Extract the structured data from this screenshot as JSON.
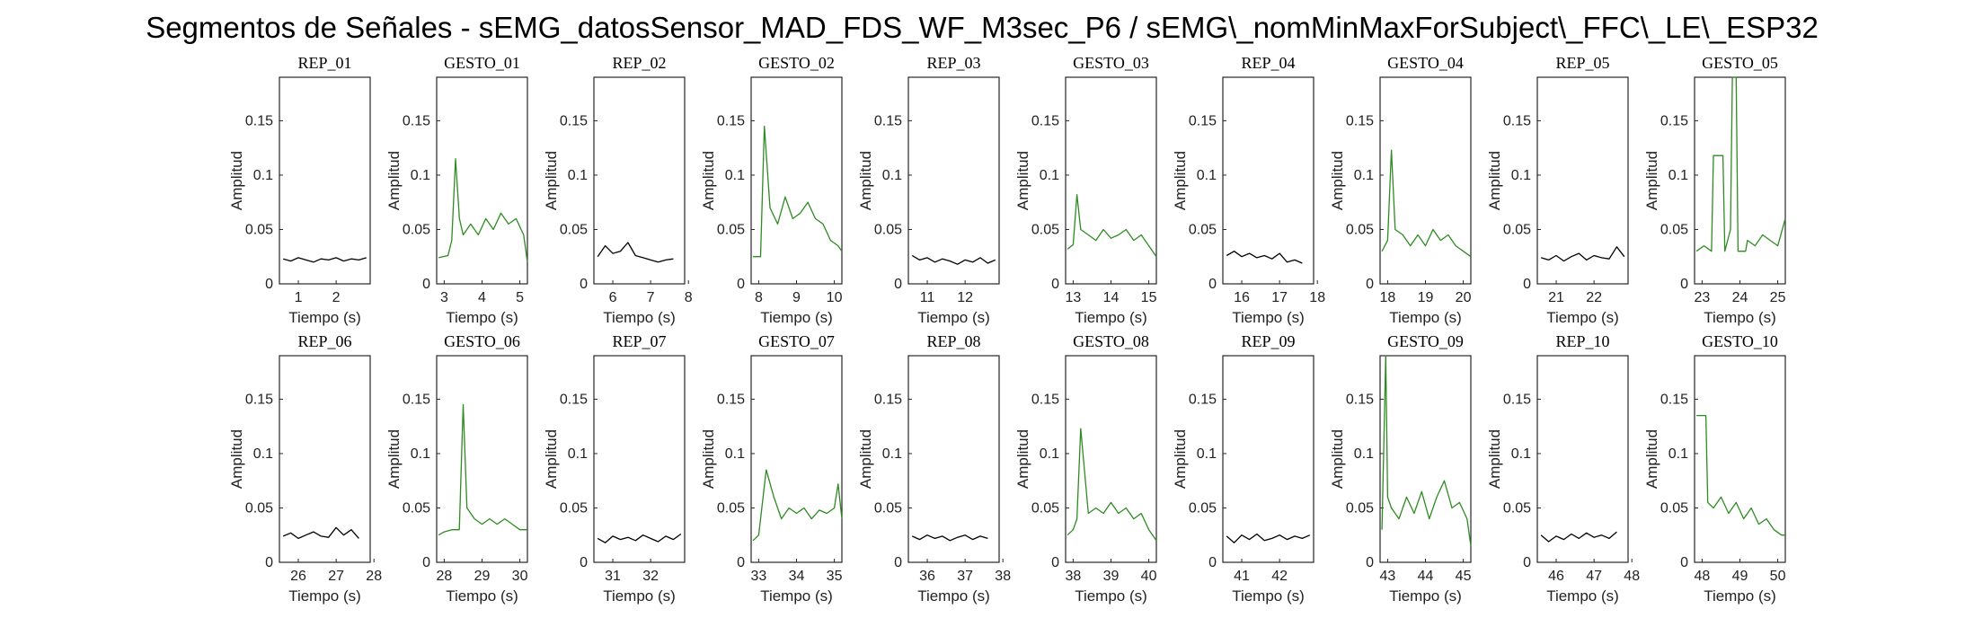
{
  "title": "Segmentos de Señales - sEMG_datosSensor_MAD_FDS_WF_M3sec_P6 / sEMG\\_nomMinMaxForSubject\\_FFC\\_LE\\_ESP32",
  "colors": {
    "rep": "#000000",
    "gesto": "#2e8b22",
    "axis": "#262626"
  },
  "chart_data": [
    {
      "type": "line",
      "subtitle": "REP_01",
      "xlabel": "Tiempo (s)",
      "ylabel": "Amplitud",
      "xlim": [
        0.5,
        2.9
      ],
      "ylim": [
        0,
        0.19
      ],
      "xticks": [
        1,
        2
      ],
      "yticks": [
        0,
        0.05,
        0.1,
        0.15
      ],
      "series": [
        {
          "kind": "rep",
          "x": [
            0.6,
            0.8,
            1.0,
            1.2,
            1.4,
            1.6,
            1.8,
            2.0,
            2.2,
            2.4,
            2.6,
            2.8
          ],
          "y": [
            0.023,
            0.021,
            0.024,
            0.022,
            0.02,
            0.023,
            0.022,
            0.024,
            0.021,
            0.023,
            0.022,
            0.024
          ]
        }
      ]
    },
    {
      "type": "line",
      "subtitle": "GESTO_01",
      "xlabel": "Tiempo (s)",
      "ylabel": "Amplitud",
      "xlim": [
        2.8,
        5.2
      ],
      "ylim": [
        0,
        0.19
      ],
      "xticks": [
        3,
        4,
        5
      ],
      "yticks": [
        0,
        0.05,
        0.1,
        0.15
      ],
      "series": [
        {
          "kind": "gesto",
          "x": [
            2.85,
            3.1,
            3.2,
            3.3,
            3.4,
            3.5,
            3.7,
            3.9,
            4.1,
            4.3,
            4.5,
            4.7,
            4.9,
            5.1,
            5.2
          ],
          "y": [
            0.024,
            0.026,
            0.04,
            0.115,
            0.06,
            0.045,
            0.055,
            0.045,
            0.06,
            0.05,
            0.065,
            0.055,
            0.06,
            0.045,
            0.02
          ]
        }
      ]
    },
    {
      "type": "line",
      "subtitle": "REP_02",
      "xlabel": "Tiempo (s)",
      "ylabel": "Amplitud",
      "xlim": [
        5.5,
        7.9
      ],
      "ylim": [
        0,
        0.19
      ],
      "xticks": [
        6,
        7,
        8
      ],
      "yticks": [
        0,
        0.05,
        0.1,
        0.15
      ],
      "series": [
        {
          "kind": "rep",
          "x": [
            5.6,
            5.8,
            6.0,
            6.2,
            6.4,
            6.6,
            6.8,
            7.0,
            7.2,
            7.4,
            7.6
          ],
          "y": [
            0.025,
            0.035,
            0.028,
            0.03,
            0.038,
            0.026,
            0.024,
            0.022,
            0.02,
            0.022,
            0.023
          ]
        }
      ]
    },
    {
      "type": "line",
      "subtitle": "GESTO_02",
      "xlabel": "Tiempo (s)",
      "ylabel": "Amplitud",
      "xlim": [
        7.8,
        10.2
      ],
      "ylim": [
        0,
        0.19
      ],
      "xticks": [
        8,
        9,
        10
      ],
      "yticks": [
        0,
        0.05,
        0.1,
        0.15
      ],
      "series": [
        {
          "kind": "gesto",
          "x": [
            7.85,
            8.05,
            8.15,
            8.3,
            8.5,
            8.7,
            8.9,
            9.1,
            9.3,
            9.5,
            9.7,
            9.9,
            10.1,
            10.2
          ],
          "y": [
            0.025,
            0.025,
            0.145,
            0.07,
            0.055,
            0.08,
            0.06,
            0.065,
            0.075,
            0.06,
            0.055,
            0.04,
            0.035,
            0.03
          ]
        }
      ]
    },
    {
      "type": "line",
      "subtitle": "REP_03",
      "xlabel": "Tiempo (s)",
      "ylabel": "Amplitud",
      "xlim": [
        10.5,
        12.9
      ],
      "ylim": [
        0,
        0.19
      ],
      "xticks": [
        11,
        12
      ],
      "yticks": [
        0,
        0.05,
        0.1,
        0.15
      ],
      "series": [
        {
          "kind": "rep",
          "x": [
            10.6,
            10.8,
            11.0,
            11.2,
            11.4,
            11.6,
            11.8,
            12.0,
            12.2,
            12.4,
            12.6,
            12.8
          ],
          "y": [
            0.026,
            0.022,
            0.024,
            0.02,
            0.023,
            0.021,
            0.018,
            0.022,
            0.02,
            0.024,
            0.019,
            0.022
          ]
        }
      ]
    },
    {
      "type": "line",
      "subtitle": "GESTO_03",
      "xlabel": "Tiempo (s)",
      "ylabel": "Amplitud",
      "xlim": [
        12.8,
        15.2
      ],
      "ylim": [
        0,
        0.19
      ],
      "xticks": [
        13,
        14,
        15
      ],
      "yticks": [
        0,
        0.05,
        0.1,
        0.15
      ],
      "series": [
        {
          "kind": "gesto",
          "x": [
            12.85,
            13.0,
            13.1,
            13.2,
            13.4,
            13.6,
            13.8,
            14.0,
            14.2,
            14.4,
            14.6,
            14.8,
            15.0,
            15.2
          ],
          "y": [
            0.032,
            0.036,
            0.082,
            0.05,
            0.045,
            0.04,
            0.05,
            0.042,
            0.045,
            0.05,
            0.04,
            0.045,
            0.035,
            0.025
          ]
        }
      ]
    },
    {
      "type": "line",
      "subtitle": "REP_04",
      "xlabel": "Tiempo (s)",
      "ylabel": "Amplitud",
      "xlim": [
        15.5,
        17.9
      ],
      "ylim": [
        0,
        0.19
      ],
      "xticks": [
        16,
        17,
        18
      ],
      "yticks": [
        0,
        0.05,
        0.1,
        0.15
      ],
      "series": [
        {
          "kind": "rep",
          "x": [
            15.6,
            15.8,
            16.0,
            16.2,
            16.4,
            16.6,
            16.8,
            17.0,
            17.2,
            17.4,
            17.6
          ],
          "y": [
            0.026,
            0.03,
            0.025,
            0.028,
            0.024,
            0.026,
            0.023,
            0.028,
            0.02,
            0.022,
            0.019
          ]
        }
      ]
    },
    {
      "type": "line",
      "subtitle": "GESTO_04",
      "xlabel": "Tiempo (s)",
      "ylabel": "Amplitud",
      "xlim": [
        17.8,
        20.2
      ],
      "ylim": [
        0,
        0.19
      ],
      "xticks": [
        18,
        19,
        20
      ],
      "yticks": [
        0,
        0.05,
        0.1,
        0.15
      ],
      "series": [
        {
          "kind": "gesto",
          "x": [
            17.85,
            18.0,
            18.1,
            18.2,
            18.4,
            18.6,
            18.8,
            19.0,
            19.2,
            19.4,
            19.6,
            19.8,
            20.0,
            20.2
          ],
          "y": [
            0.03,
            0.04,
            0.123,
            0.05,
            0.045,
            0.035,
            0.045,
            0.035,
            0.05,
            0.04,
            0.045,
            0.035,
            0.03,
            0.025
          ]
        }
      ]
    },
    {
      "type": "line",
      "subtitle": "REP_05",
      "xlabel": "Tiempo (s)",
      "ylabel": "Amplitud",
      "xlim": [
        20.5,
        22.9
      ],
      "ylim": [
        0,
        0.19
      ],
      "xticks": [
        21,
        22
      ],
      "yticks": [
        0,
        0.05,
        0.1,
        0.15
      ],
      "series": [
        {
          "kind": "rep",
          "x": [
            20.6,
            20.8,
            21.0,
            21.2,
            21.4,
            21.6,
            21.8,
            22.0,
            22.2,
            22.4,
            22.6,
            22.8
          ],
          "y": [
            0.024,
            0.022,
            0.026,
            0.021,
            0.025,
            0.028,
            0.022,
            0.026,
            0.024,
            0.023,
            0.034,
            0.025
          ]
        }
      ]
    },
    {
      "type": "line",
      "subtitle": "GESTO_05",
      "xlabel": "Tiempo (s)",
      "ylabel": "Amplitud",
      "xlim": [
        22.8,
        25.2
      ],
      "ylim": [
        0,
        0.19
      ],
      "xticks": [
        23,
        24,
        25
      ],
      "yticks": [
        0,
        0.05,
        0.1,
        0.15
      ],
      "series": [
        {
          "kind": "gesto",
          "x": [
            22.85,
            23.05,
            23.25,
            23.3,
            23.55,
            23.6,
            23.75,
            23.8,
            23.9,
            23.95,
            24.15,
            24.2,
            24.4,
            24.6,
            24.8,
            25.0,
            25.2
          ],
          "y": [
            0.03,
            0.035,
            0.03,
            0.118,
            0.118,
            0.03,
            0.05,
            0.19,
            0.19,
            0.03,
            0.03,
            0.04,
            0.035,
            0.045,
            0.04,
            0.035,
            0.06
          ]
        }
      ]
    },
    {
      "type": "line",
      "subtitle": "REP_06",
      "xlabel": "Tiempo (s)",
      "ylabel": "Amplitud",
      "xlim": [
        25.5,
        27.9
      ],
      "ylim": [
        0,
        0.19
      ],
      "xticks": [
        26,
        27,
        28
      ],
      "yticks": [
        0,
        0.05,
        0.1,
        0.15
      ],
      "series": [
        {
          "kind": "rep",
          "x": [
            25.6,
            25.8,
            26.0,
            26.2,
            26.4,
            26.6,
            26.8,
            27.0,
            27.2,
            27.4,
            27.6
          ],
          "y": [
            0.024,
            0.027,
            0.022,
            0.025,
            0.028,
            0.024,
            0.023,
            0.032,
            0.025,
            0.03,
            0.022
          ]
        }
      ]
    },
    {
      "type": "line",
      "subtitle": "GESTO_06",
      "xlabel": "Tiempo (s)",
      "ylabel": "Amplitud",
      "xlim": [
        27.8,
        30.2
      ],
      "ylim": [
        0,
        0.19
      ],
      "xticks": [
        28,
        29,
        30
      ],
      "yticks": [
        0,
        0.05,
        0.1,
        0.15
      ],
      "series": [
        {
          "kind": "gesto",
          "x": [
            27.85,
            28.0,
            28.2,
            28.4,
            28.5,
            28.6,
            28.8,
            29.0,
            29.2,
            29.4,
            29.6,
            29.8,
            30.0,
            30.2
          ],
          "y": [
            0.025,
            0.028,
            0.03,
            0.03,
            0.145,
            0.05,
            0.04,
            0.035,
            0.04,
            0.035,
            0.04,
            0.035,
            0.03,
            0.03
          ]
        }
      ]
    },
    {
      "type": "line",
      "subtitle": "REP_07",
      "xlabel": "Tiempo (s)",
      "ylabel": "Amplitud",
      "xlim": [
        30.5,
        32.9
      ],
      "ylim": [
        0,
        0.19
      ],
      "xticks": [
        31,
        32
      ],
      "yticks": [
        0,
        0.05,
        0.1,
        0.15
      ],
      "series": [
        {
          "kind": "rep",
          "x": [
            30.6,
            30.8,
            31.0,
            31.2,
            31.4,
            31.6,
            31.8,
            32.0,
            32.2,
            32.4,
            32.6,
            32.8
          ],
          "y": [
            0.022,
            0.018,
            0.024,
            0.021,
            0.023,
            0.02,
            0.025,
            0.022,
            0.019,
            0.024,
            0.021,
            0.026
          ]
        }
      ]
    },
    {
      "type": "line",
      "subtitle": "GESTO_07",
      "xlabel": "Tiempo (s)",
      "ylabel": "Amplitud",
      "xlim": [
        32.8,
        35.2
      ],
      "ylim": [
        0,
        0.19
      ],
      "xticks": [
        33,
        34,
        35
      ],
      "yticks": [
        0,
        0.05,
        0.1,
        0.15
      ],
      "series": [
        {
          "kind": "gesto",
          "x": [
            32.85,
            33.0,
            33.2,
            33.4,
            33.6,
            33.8,
            34.0,
            34.2,
            34.4,
            34.6,
            34.8,
            35.0,
            35.1,
            35.2
          ],
          "y": [
            0.02,
            0.025,
            0.085,
            0.06,
            0.04,
            0.05,
            0.045,
            0.05,
            0.04,
            0.048,
            0.045,
            0.05,
            0.072,
            0.04
          ]
        }
      ]
    },
    {
      "type": "line",
      "subtitle": "REP_08",
      "xlabel": "Tiempo (s)",
      "ylabel": "Amplitud",
      "xlim": [
        35.5,
        37.9
      ],
      "ylim": [
        0,
        0.19
      ],
      "xticks": [
        36,
        37,
        38
      ],
      "yticks": [
        0,
        0.05,
        0.1,
        0.15
      ],
      "series": [
        {
          "kind": "rep",
          "x": [
            35.6,
            35.8,
            36.0,
            36.2,
            36.4,
            36.6,
            36.8,
            37.0,
            37.2,
            37.4,
            37.6
          ],
          "y": [
            0.024,
            0.021,
            0.025,
            0.022,
            0.024,
            0.02,
            0.023,
            0.025,
            0.021,
            0.024,
            0.022
          ]
        }
      ]
    },
    {
      "type": "line",
      "subtitle": "GESTO_08",
      "xlabel": "Tiempo (s)",
      "ylabel": "Amplitud",
      "xlim": [
        37.8,
        40.2
      ],
      "ylim": [
        0,
        0.19
      ],
      "xticks": [
        38,
        39,
        40
      ],
      "yticks": [
        0,
        0.05,
        0.1,
        0.15
      ],
      "series": [
        {
          "kind": "gesto",
          "x": [
            37.85,
            38.0,
            38.1,
            38.2,
            38.4,
            38.6,
            38.8,
            39.0,
            39.2,
            39.4,
            39.6,
            39.8,
            40.0,
            40.2
          ],
          "y": [
            0.025,
            0.03,
            0.04,
            0.123,
            0.045,
            0.05,
            0.045,
            0.055,
            0.045,
            0.05,
            0.04,
            0.045,
            0.03,
            0.02
          ]
        }
      ]
    },
    {
      "type": "line",
      "subtitle": "REP_09",
      "xlabel": "Tiempo (s)",
      "ylabel": "Amplitud",
      "xlim": [
        40.5,
        42.9
      ],
      "ylim": [
        0,
        0.19
      ],
      "xticks": [
        41,
        42
      ],
      "yticks": [
        0,
        0.05,
        0.1,
        0.15
      ],
      "series": [
        {
          "kind": "rep",
          "x": [
            40.6,
            40.8,
            41.0,
            41.2,
            41.4,
            41.6,
            41.8,
            42.0,
            42.2,
            42.4,
            42.6,
            42.8
          ],
          "y": [
            0.024,
            0.018,
            0.025,
            0.021,
            0.026,
            0.02,
            0.022,
            0.025,
            0.021,
            0.024,
            0.022,
            0.025
          ]
        }
      ]
    },
    {
      "type": "line",
      "subtitle": "GESTO_09",
      "xlabel": "Tiempo (s)",
      "ylabel": "Amplitud",
      "xlim": [
        42.8,
        45.2
      ],
      "ylim": [
        0,
        0.19
      ],
      "xticks": [
        43,
        44,
        45
      ],
      "yticks": [
        0,
        0.05,
        0.1,
        0.15
      ],
      "series": [
        {
          "kind": "gesto",
          "x": [
            42.85,
            42.95,
            43.0,
            43.1,
            43.3,
            43.5,
            43.7,
            43.9,
            44.1,
            44.3,
            44.5,
            44.7,
            44.9,
            45.1,
            45.2
          ],
          "y": [
            0.03,
            0.19,
            0.06,
            0.05,
            0.04,
            0.06,
            0.045,
            0.065,
            0.04,
            0.06,
            0.075,
            0.05,
            0.055,
            0.04,
            0.015
          ]
        }
      ]
    },
    {
      "type": "line",
      "subtitle": "REP_10",
      "xlabel": "Tiempo (s)",
      "ylabel": "Amplitud",
      "xlim": [
        45.5,
        47.9
      ],
      "ylim": [
        0,
        0.19
      ],
      "xticks": [
        46,
        47,
        48
      ],
      "yticks": [
        0,
        0.05,
        0.1,
        0.15
      ],
      "series": [
        {
          "kind": "rep",
          "x": [
            45.6,
            45.8,
            46.0,
            46.2,
            46.4,
            46.6,
            46.8,
            47.0,
            47.2,
            47.4,
            47.6
          ],
          "y": [
            0.025,
            0.019,
            0.024,
            0.021,
            0.026,
            0.022,
            0.027,
            0.023,
            0.025,
            0.022,
            0.028
          ]
        }
      ]
    },
    {
      "type": "line",
      "subtitle": "GESTO_10",
      "xlabel": "Tiempo (s)",
      "ylabel": "Amplitud",
      "xlim": [
        47.8,
        50.2
      ],
      "ylim": [
        0,
        0.19
      ],
      "xticks": [
        48,
        49,
        50
      ],
      "yticks": [
        0,
        0.05,
        0.1,
        0.15
      ],
      "series": [
        {
          "kind": "gesto",
          "x": [
            47.85,
            48.1,
            48.15,
            48.3,
            48.5,
            48.7,
            48.9,
            49.1,
            49.3,
            49.5,
            49.7,
            49.9,
            50.1,
            50.2
          ],
          "y": [
            0.135,
            0.135,
            0.055,
            0.05,
            0.06,
            0.045,
            0.055,
            0.04,
            0.05,
            0.035,
            0.04,
            0.03,
            0.025,
            0.025
          ]
        }
      ]
    }
  ]
}
